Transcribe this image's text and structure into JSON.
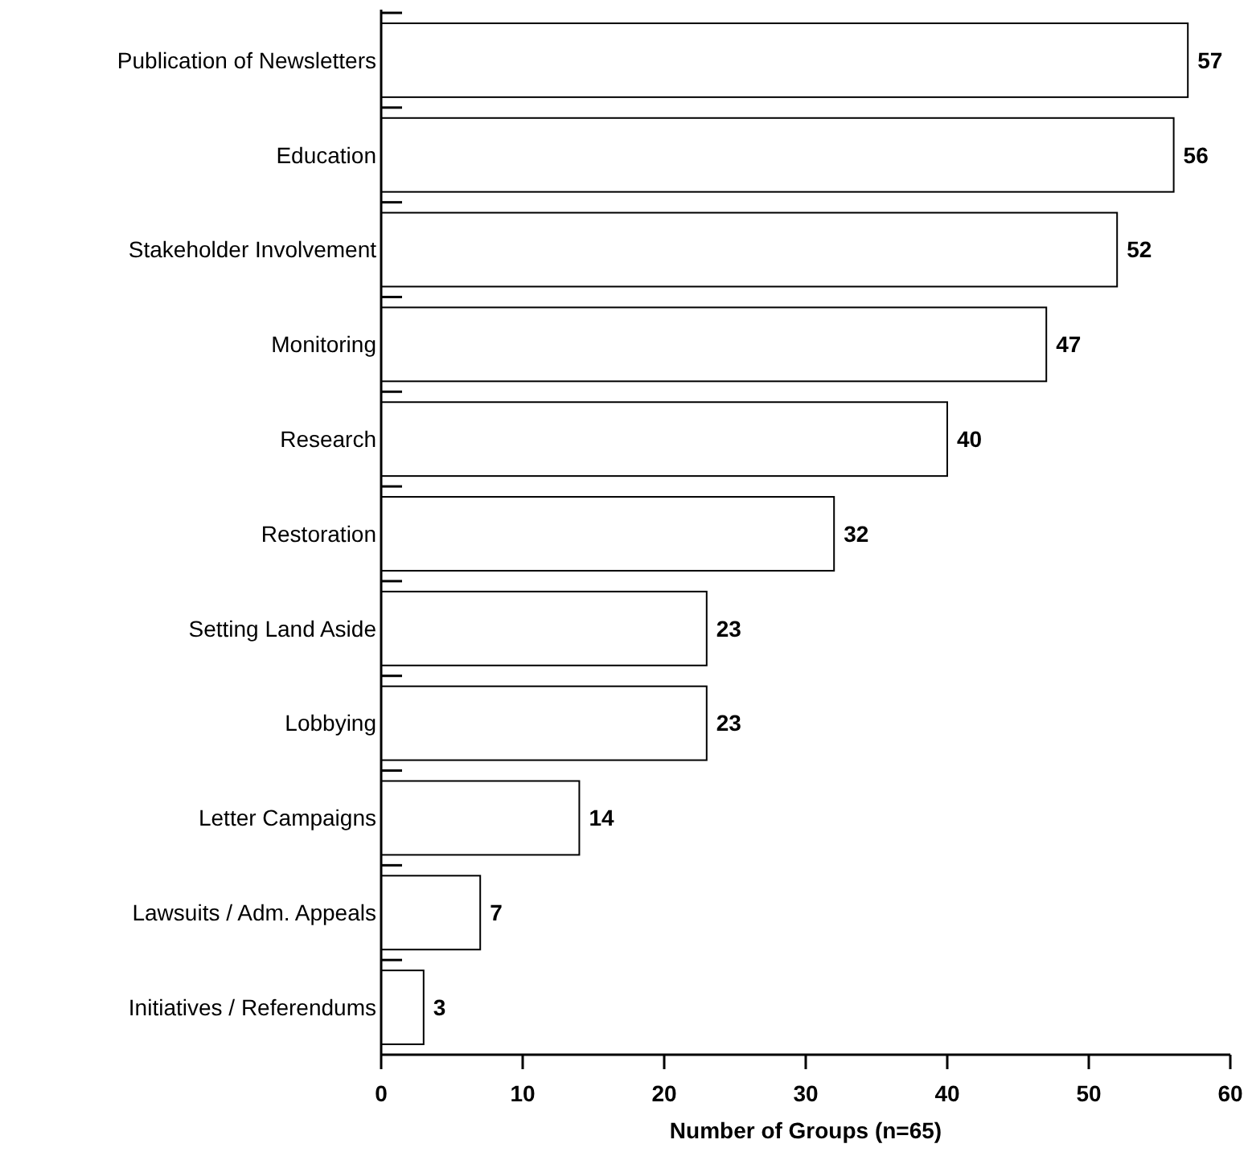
{
  "chart_data": {
    "type": "bar",
    "orientation": "horizontal",
    "xlabel": "Number of Groups (n=65)",
    "categories": [
      "Publication of Newsletters",
      "Education",
      "Stakeholder Involvement",
      "Monitoring",
      "Research",
      "Restoration",
      "Setting Land Aside",
      "Lobbying",
      "Letter Campaigns",
      "Lawsuits / Adm. Appeals",
      "Initiatives / Referendums"
    ],
    "values": [
      57,
      56,
      52,
      47,
      40,
      32,
      23,
      23,
      14,
      7,
      3
    ],
    "color": "#ffffff",
    "xlim": [
      0,
      60
    ],
    "xticks": [
      0,
      10,
      20,
      30,
      40,
      50,
      60
    ],
    "grid": false,
    "data_labels": true
  }
}
